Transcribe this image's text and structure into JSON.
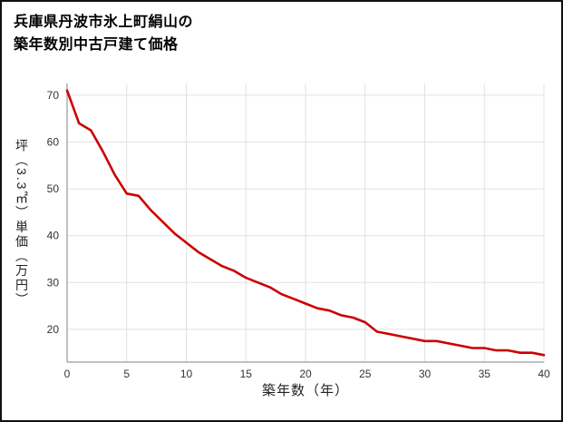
{
  "title": {
    "line1": "兵庫県丹波市氷上町絹山の",
    "line2": "築年数別中古戸建て価格"
  },
  "chart_data": {
    "type": "line",
    "title": "兵庫県丹波市氷上町絹山の築年数別中古戸建て価格",
    "xlabel": "築年数（年）",
    "ylabel": "坪（3.3㎡）単価（万円）",
    "x": [
      0,
      1,
      2,
      3,
      4,
      5,
      6,
      7,
      8,
      9,
      10,
      11,
      12,
      13,
      14,
      15,
      16,
      17,
      18,
      19,
      20,
      21,
      22,
      23,
      24,
      25,
      26,
      27,
      28,
      29,
      30,
      31,
      32,
      33,
      34,
      35,
      36,
      37,
      38,
      39,
      40
    ],
    "values": [
      71,
      64,
      62.5,
      58,
      53,
      49,
      48.5,
      45.5,
      43,
      40.5,
      38.5,
      36.5,
      35,
      33.5,
      32.5,
      31,
      30,
      29,
      27.5,
      26.5,
      25.5,
      24.5,
      24,
      23,
      22.5,
      21.5,
      19.5,
      19,
      18.5,
      18,
      17.5,
      17.5,
      17,
      16.5,
      16,
      16,
      15.5,
      15.5,
      15,
      15,
      14.5
    ],
    "xlim": [
      0,
      40
    ],
    "ylim": [
      13,
      72.5
    ],
    "x_ticks": [
      0,
      5,
      10,
      15,
      20,
      25,
      30,
      35,
      40
    ],
    "y_ticks": [
      20,
      30,
      40,
      50,
      60,
      70
    ],
    "grid": true,
    "legend": false,
    "line_color": "#cc0000",
    "grid_color": "#e2e2e2",
    "axis_color": "#9a9a9a",
    "tick_color": "#333333"
  }
}
